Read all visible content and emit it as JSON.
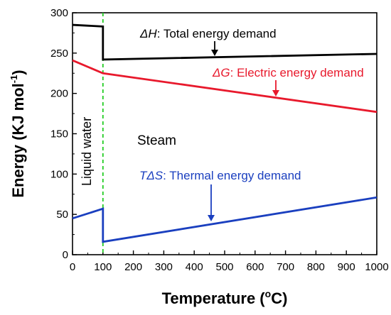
{
  "chart_data": {
    "type": "line",
    "xlabel": "Temperature (°C)",
    "ylabel": "Energy (KJ mol⁻¹)",
    "xlim": [
      0,
      1000
    ],
    "ylim": [
      0,
      300
    ],
    "xticks": [
      0,
      100,
      200,
      300,
      400,
      500,
      600,
      700,
      800,
      900,
      1000
    ],
    "yticks": [
      0,
      50,
      100,
      150,
      200,
      250,
      300
    ],
    "grid": false,
    "legend": "none",
    "series": [
      {
        "label_symbol": "ΔH",
        "label_text": ": Total energy demand",
        "color": "#000000",
        "x": [
          0,
          100,
          100,
          1000
        ],
        "y": [
          285,
          283,
          242,
          249
        ]
      },
      {
        "label_symbol": "ΔG",
        "label_text": ": Electric energy demand",
        "color": "#e8192c",
        "x": [
          0,
          100,
          1000
        ],
        "y": [
          241,
          225,
          177
        ]
      },
      {
        "label_symbol": "TΔS",
        "label_text": ": Thermal energy demand",
        "color": "#1a3fbf",
        "x": [
          0,
          100,
          100,
          1000
        ],
        "y": [
          45,
          57,
          16,
          71
        ]
      }
    ],
    "phase_boundary": {
      "x": 100,
      "color": "#22cc22"
    },
    "region_labels": {
      "liquid": "Liquid water",
      "steam": "Steam"
    }
  }
}
